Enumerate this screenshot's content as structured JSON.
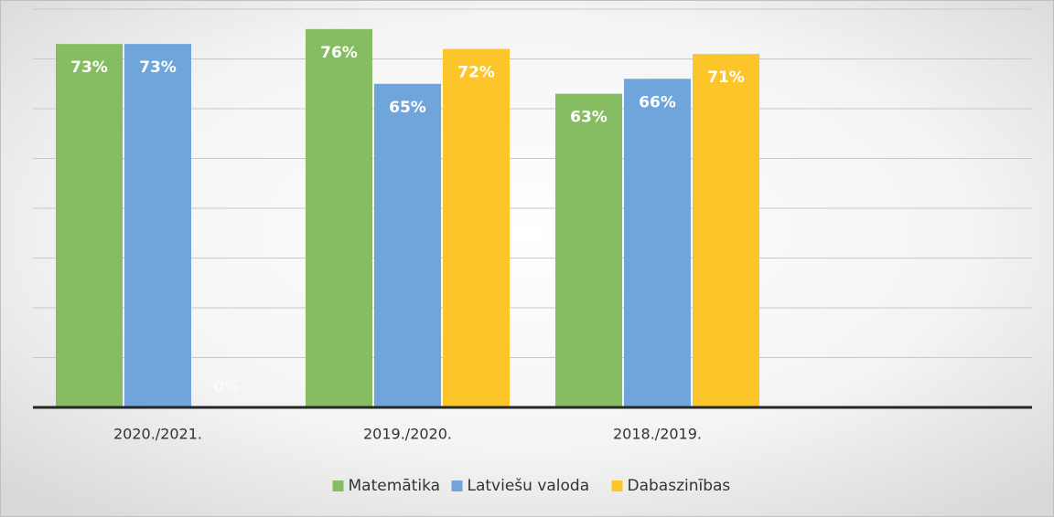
{
  "chart_data": {
    "type": "bar",
    "categories": [
      "2020./2021.",
      "2019./2020.",
      "2018./2019.",
      null
    ],
    "series": [
      {
        "name": "Matemātika",
        "color": "#87bd62",
        "values": [
          73,
          76,
          63,
          null
        ],
        "value_labels": [
          "73%",
          "76%",
          "63%",
          null
        ]
      },
      {
        "name": "Latviešu valoda",
        "color": "#6fa5db",
        "values": [
          73,
          65,
          66,
          null
        ],
        "value_labels": [
          "73%",
          "65%",
          "66%",
          null
        ]
      },
      {
        "name": "Dabaszinības",
        "color": "#fcc62a",
        "values": [
          0,
          72,
          71,
          null
        ],
        "value_labels": [
          "0%",
          "72%",
          "71%",
          null
        ]
      }
    ],
    "ylim": [
      0,
      80
    ],
    "yticks": [
      0,
      10,
      20,
      30,
      40,
      50,
      60,
      70,
      80
    ],
    "grid": true,
    "legend": "bottom"
  }
}
